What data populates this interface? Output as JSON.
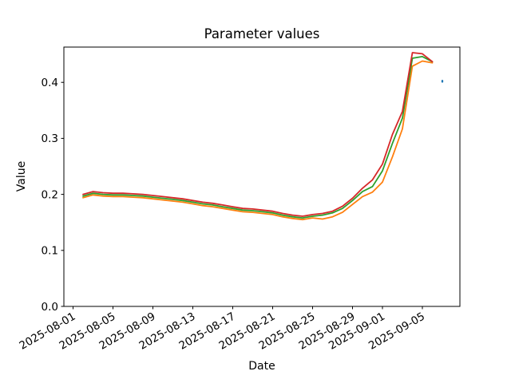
{
  "figure": {
    "title": "Parameter values",
    "xlabel": "Date",
    "ylabel": "Value"
  },
  "chart_data": {
    "type": "line",
    "title": "Parameter values",
    "xlabel": "Date",
    "ylabel": "Value",
    "grid": false,
    "legend": null,
    "ylim": [
      0.0,
      0.463
    ],
    "xlim_days": [
      -0.92,
      38.76
    ],
    "y_ticks": [
      0.0,
      0.1,
      0.2,
      0.3,
      0.4
    ],
    "x_ticks": [
      "2025-08-01",
      "2025-08-05",
      "2025-08-09",
      "2025-08-13",
      "2025-08-17",
      "2025-08-21",
      "2025-08-25",
      "2025-08-29",
      "2025-09-01",
      "2025-09-05"
    ],
    "x": [
      "2025-08-02",
      "2025-08-03",
      "2025-08-04",
      "2025-08-05",
      "2025-08-06",
      "2025-08-07",
      "2025-08-08",
      "2025-08-09",
      "2025-08-10",
      "2025-08-11",
      "2025-08-12",
      "2025-08-13",
      "2025-08-14",
      "2025-08-15",
      "2025-08-16",
      "2025-08-17",
      "2025-08-18",
      "2025-08-19",
      "2025-08-20",
      "2025-08-21",
      "2025-08-22",
      "2025-08-23",
      "2025-08-24",
      "2025-08-25",
      "2025-08-26",
      "2025-08-27",
      "2025-08-28",
      "2025-08-29",
      "2025-08-30",
      "2025-08-31",
      "2025-09-01",
      "2025-09-02",
      "2025-09-03",
      "2025-09-04",
      "2025-09-05",
      "2025-09-06"
    ],
    "series": [
      {
        "name": "orange",
        "color": "#ff7f0e",
        "values": [
          0.194,
          0.199,
          0.197,
          0.196,
          0.196,
          0.195,
          0.194,
          0.192,
          0.19,
          0.188,
          0.186,
          0.183,
          0.18,
          0.178,
          0.175,
          0.172,
          0.169,
          0.168,
          0.166,
          0.164,
          0.16,
          0.157,
          0.155,
          0.158,
          0.156,
          0.16,
          0.168,
          0.182,
          0.196,
          0.204,
          0.222,
          0.267,
          0.317,
          0.429,
          0.438,
          0.435
        ]
      },
      {
        "name": "green",
        "color": "#2ca02c",
        "values": [
          0.197,
          0.202,
          0.2,
          0.199,
          0.199,
          0.198,
          0.197,
          0.195,
          0.193,
          0.191,
          0.189,
          0.186,
          0.183,
          0.181,
          0.178,
          0.175,
          0.172,
          0.171,
          0.169,
          0.167,
          0.163,
          0.16,
          0.158,
          0.161,
          0.163,
          0.167,
          0.175,
          0.189,
          0.205,
          0.214,
          0.242,
          0.291,
          0.336,
          0.443,
          0.446,
          0.437
        ]
      },
      {
        "name": "red",
        "color": "#d62728",
        "values": [
          0.2,
          0.205,
          0.203,
          0.202,
          0.202,
          0.201,
          0.2,
          0.198,
          0.196,
          0.194,
          0.192,
          0.189,
          0.186,
          0.184,
          0.181,
          0.178,
          0.175,
          0.174,
          0.172,
          0.17,
          0.166,
          0.163,
          0.161,
          0.164,
          0.166,
          0.17,
          0.179,
          0.193,
          0.211,
          0.226,
          0.254,
          0.307,
          0.348,
          0.453,
          0.451,
          0.437
        ]
      },
      {
        "name": "blue-point",
        "color": "#1f77b4",
        "style": "point",
        "x": [
          "2025-09-07"
        ],
        "values": [
          0.402
        ]
      }
    ]
  }
}
